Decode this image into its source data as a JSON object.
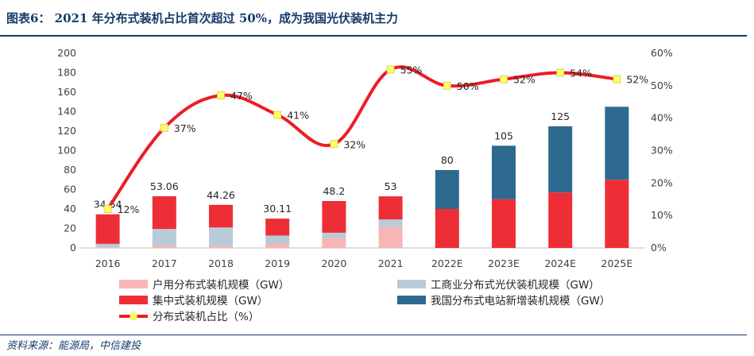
{
  "title": "图表6： 2021 年分布式装机占比首次超过 50%，成为我国光伏装机主力",
  "source": "资料来源：能源局，中信建投",
  "chart_data": {
    "type": "bar",
    "categories": [
      "2016",
      "2017",
      "2018",
      "2019",
      "2020",
      "2021",
      "2022E",
      "2023E",
      "2024E",
      "2025E"
    ],
    "y_left": {
      "ylim": [
        0,
        200
      ],
      "ticks": [
        "0",
        "20",
        "40",
        "60",
        "80",
        "100",
        "120",
        "140",
        "160",
        "180",
        "200"
      ]
    },
    "y_right": {
      "ylim": [
        0,
        60
      ],
      "ticks": [
        "0%",
        "10%",
        "20%",
        "30%",
        "40%",
        "50%",
        "60%"
      ]
    },
    "series": [
      {
        "name": "户用分布式装机规模（GW）",
        "kind": "bar",
        "color": "#f7b6b6",
        "values": [
          0.5,
          2.5,
          2.0,
          4.5,
          10.1,
          21.6,
          0,
          0,
          0,
          0
        ]
      },
      {
        "name": "工商业分布式光伏装机规模（GW）",
        "kind": "bar",
        "color": "#b8cbd9",
        "values": [
          3.7,
          17.0,
          19.0,
          8.2,
          5.5,
          7.7,
          0,
          0,
          0,
          0
        ]
      },
      {
        "name": "集中式装机规模（GW）",
        "kind": "bar",
        "color": "#ee2e36",
        "values": [
          30.34,
          33.56,
          23.26,
          17.41,
          32.6,
          23.7,
          40,
          50,
          57,
          70
        ]
      },
      {
        "name": "我国分布式电站新增装机规模（GW）",
        "kind": "bar",
        "color": "#2e6a90",
        "values": [
          0,
          0,
          0,
          0,
          0,
          0,
          40,
          55,
          68,
          75
        ]
      },
      {
        "name": "分布式装机占比（%）",
        "kind": "line",
        "axis": "right",
        "color": "#ee1c25",
        "marker_color": "#ffff66",
        "values": [
          12,
          37,
          47,
          41,
          32,
          55,
          50,
          52,
          54,
          52
        ]
      }
    ],
    "total_labels": [
      "34.54",
      "53.06",
      "44.26",
      "30.11",
      "48.2",
      "53",
      "80",
      "105",
      "125",
      ""
    ],
    "line_labels": [
      "12%",
      "37%",
      "47%",
      "41%",
      "32%",
      "55%",
      "50%",
      "52%",
      "54%",
      "52%"
    ],
    "legend_position": "bottom"
  }
}
